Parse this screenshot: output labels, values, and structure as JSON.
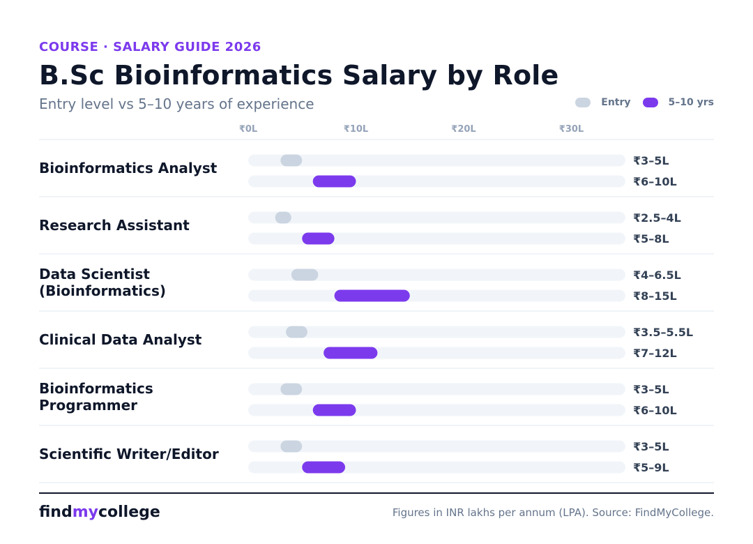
{
  "header": {
    "eyebrow": "COURSE · SALARY GUIDE 2026",
    "title": "B.Sc Bioinformatics Salary by Role",
    "subtitle": "Entry level vs 5–10 years of experience"
  },
  "legend": [
    {
      "label": "Entry",
      "color": "#cbd5e1"
    },
    {
      "label": "5–10 yrs",
      "color": "#7c3aed"
    }
  ],
  "chart_data": {
    "type": "bar",
    "subtype": "range",
    "unit": "INR lakhs per annum",
    "xlim": [
      0,
      35
    ],
    "xticks": [
      0,
      10,
      20,
      30
    ],
    "xtick_labels": [
      "₹0L",
      "₹10L",
      "₹20L",
      "₹30L"
    ],
    "series": [
      {
        "name": "Entry",
        "color": "#cbd5e1"
      },
      {
        "name": "5–10 yrs",
        "color": "#7c3aed"
      }
    ],
    "roles": [
      {
        "name": "Bioinformatics Analyst",
        "lines": [
          "Bioinformatics Analyst"
        ],
        "entry": {
          "min": 3,
          "max": 5,
          "label": "₹3–5L"
        },
        "senior": {
          "min": 6,
          "max": 10,
          "label": "₹6–10L"
        }
      },
      {
        "name": "Research Assistant",
        "lines": [
          "Research Assistant"
        ],
        "entry": {
          "min": 2.5,
          "max": 4,
          "label": "₹2.5–4L"
        },
        "senior": {
          "min": 5,
          "max": 8,
          "label": "₹5–8L"
        }
      },
      {
        "name": "Data Scientist (Bioinformatics)",
        "lines": [
          "Data Scientist",
          "(Bioinformatics)"
        ],
        "entry": {
          "min": 4,
          "max": 6.5,
          "label": "₹4–6.5L"
        },
        "senior": {
          "min": 8,
          "max": 15,
          "label": "₹8–15L"
        }
      },
      {
        "name": "Clinical Data Analyst",
        "lines": [
          "Clinical Data Analyst"
        ],
        "entry": {
          "min": 3.5,
          "max": 5.5,
          "label": "₹3.5–5.5L"
        },
        "senior": {
          "min": 7,
          "max": 12,
          "label": "₹7–12L"
        }
      },
      {
        "name": "Bioinformatics Programmer",
        "lines": [
          "Bioinformatics",
          "Programmer"
        ],
        "entry": {
          "min": 3,
          "max": 5,
          "label": "₹3–5L"
        },
        "senior": {
          "min": 6,
          "max": 10,
          "label": "₹6–10L"
        }
      },
      {
        "name": "Scientific Writer/Editor",
        "lines": [
          "Scientific Writer/Editor"
        ],
        "entry": {
          "min": 3,
          "max": 5,
          "label": "₹3–5L"
        },
        "senior": {
          "min": 5,
          "max": 9,
          "label": "₹5–9L"
        }
      }
    ],
    "colors": {
      "track": "#f1f5f9",
      "divider": "#e2e8f0",
      "tick_text": "#94a3b8",
      "value_text": "#334155"
    }
  },
  "footer": {
    "brand_part1": "find",
    "brand_part2": "my",
    "brand_part3": "college",
    "source": "Figures in INR lakhs per annum (LPA). Source: FindMyCollege."
  }
}
